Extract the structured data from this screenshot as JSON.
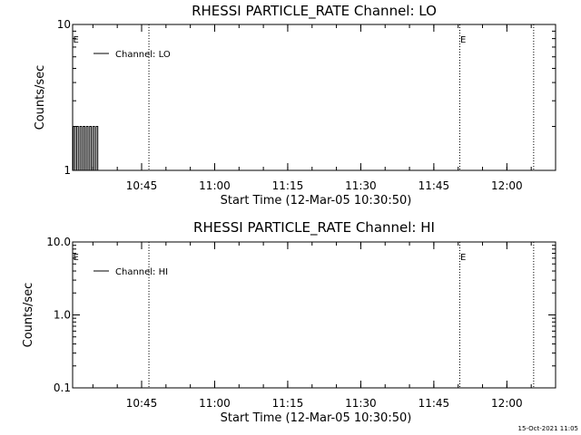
{
  "chart_data": [
    {
      "type": "line",
      "title": "RHESSI PARTICLE_RATE Channel: LO",
      "xlabel": "Start Time (12-Mar-05 10:30:50)",
      "ylabel": "Counts/sec",
      "yscale": "log",
      "ylim": [
        1,
        10
      ],
      "yticks": [
        "1",
        "10"
      ],
      "xlim": [
        "10:30:50",
        "12:10:00"
      ],
      "xticks": [
        "10:45",
        "11:00",
        "11:15",
        "11:30",
        "11:45",
        "12:00"
      ],
      "legend_placement": "top-left",
      "grid": false,
      "series": [
        {
          "name": "Channel: LO",
          "points": [
            [
              "10:30:50",
              1
            ],
            [
              "10:31:00",
              2
            ],
            [
              "10:31:20",
              1
            ],
            [
              "10:31:40",
              2
            ],
            [
              "10:32:00",
              1
            ],
            [
              "10:32:20",
              2
            ],
            [
              "10:32:40",
              1
            ],
            [
              "10:33:00",
              2
            ],
            [
              "10:33:20",
              1
            ],
            [
              "10:33:40",
              2
            ],
            [
              "10:34:00",
              1
            ],
            [
              "10:34:20",
              2
            ],
            [
              "10:34:40",
              1
            ],
            [
              "10:35:00",
              2
            ],
            [
              "10:35:20",
              1
            ],
            [
              "10:35:40",
              2
            ],
            [
              "10:36:00",
              1
            ],
            [
              "10:36:30",
              1
            ]
          ]
        }
      ],
      "markers": [
        {
          "time": "10:30:50",
          "label": "E"
        },
        {
          "time": "10:46:30",
          "label": ""
        },
        {
          "time": "11:50:20",
          "label": "E"
        },
        {
          "time": "12:05:30",
          "label": ""
        }
      ]
    },
    {
      "type": "line",
      "title": "RHESSI PARTICLE_RATE Channel: HI",
      "xlabel": "Start Time (12-Mar-05 10:30:50)",
      "ylabel": "Counts/sec",
      "yscale": "log",
      "ylim": [
        0.1,
        10
      ],
      "yticks": [
        "0.1",
        "1.0",
        "10.0"
      ],
      "xlim": [
        "10:30:50",
        "12:10:00"
      ],
      "xticks": [
        "10:45",
        "11:00",
        "11:15",
        "11:30",
        "11:45",
        "12:00"
      ],
      "legend_placement": "top-left",
      "grid": false,
      "series": [
        {
          "name": "Channel: HI",
          "points": []
        }
      ],
      "markers": [
        {
          "time": "10:30:50",
          "label": "E"
        },
        {
          "time": "10:46:30",
          "label": ""
        },
        {
          "time": "11:50:20",
          "label": "E"
        },
        {
          "time": "12:05:30",
          "label": ""
        }
      ]
    }
  ],
  "footer": {
    "timestamp": "15-Oct-2021 11:05"
  }
}
